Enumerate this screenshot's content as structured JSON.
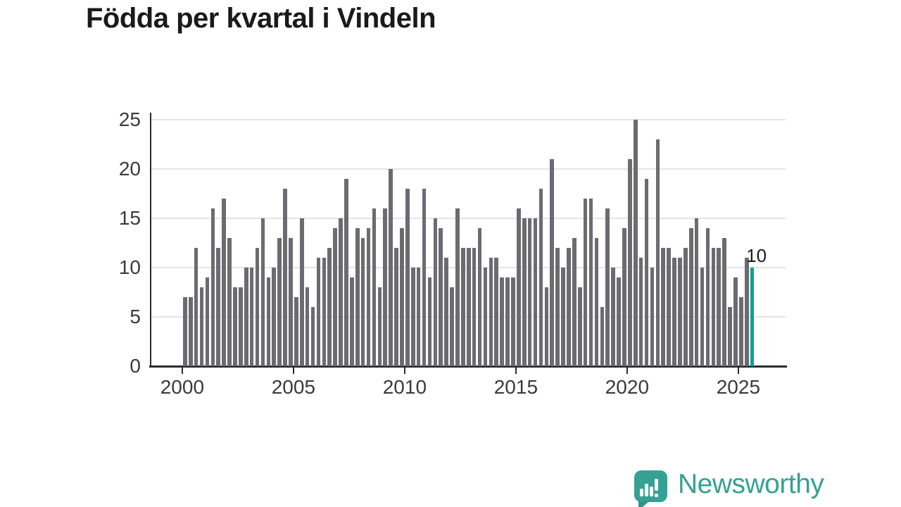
{
  "title": "Födda per kvartal i Vindeln",
  "annotation": {
    "last_bar_label": "10"
  },
  "logo": {
    "text": "Newsworthy",
    "icon": "bar-chart-speech-bubble-icon"
  },
  "colors": {
    "bar": "#6b6b70",
    "highlight": "#00a49c",
    "grid": "#e4e4e4",
    "axis": "#2b2b2b",
    "title": "#1a1a1a",
    "tick_label": "#3a3a3a",
    "logo_teal": "#35a194"
  },
  "chart_data": {
    "type": "bar",
    "title": "Födda per kvartal i Vindeln",
    "xlabel": "",
    "ylabel": "",
    "ylim": [
      0,
      25
    ],
    "grid": "horizontal",
    "y_ticks": [
      0,
      5,
      10,
      15,
      20,
      25
    ],
    "x_tick_years": [
      "2000",
      "2005",
      "2010",
      "2015",
      "2020",
      "2025"
    ],
    "highlight_last_bar": true,
    "last_bar_value_label": "10",
    "categories": [
      "2000-Q1",
      "2000-Q2",
      "2000-Q3",
      "2000-Q4",
      "2001-Q1",
      "2001-Q2",
      "2001-Q3",
      "2001-Q4",
      "2002-Q1",
      "2002-Q2",
      "2002-Q3",
      "2002-Q4",
      "2003-Q1",
      "2003-Q2",
      "2003-Q3",
      "2003-Q4",
      "2004-Q1",
      "2004-Q2",
      "2004-Q3",
      "2004-Q4",
      "2005-Q1",
      "2005-Q2",
      "2005-Q3",
      "2005-Q4",
      "2006-Q1",
      "2006-Q2",
      "2006-Q3",
      "2006-Q4",
      "2007-Q1",
      "2007-Q2",
      "2007-Q3",
      "2007-Q4",
      "2008-Q1",
      "2008-Q2",
      "2008-Q3",
      "2008-Q4",
      "2009-Q1",
      "2009-Q2",
      "2009-Q3",
      "2009-Q4",
      "2010-Q1",
      "2010-Q2",
      "2010-Q3",
      "2010-Q4",
      "2011-Q1",
      "2011-Q2",
      "2011-Q3",
      "2011-Q4",
      "2012-Q1",
      "2012-Q2",
      "2012-Q3",
      "2012-Q4",
      "2013-Q1",
      "2013-Q2",
      "2013-Q3",
      "2013-Q4",
      "2014-Q1",
      "2014-Q2",
      "2014-Q3",
      "2014-Q4",
      "2015-Q1",
      "2015-Q2",
      "2015-Q3",
      "2015-Q4",
      "2016-Q1",
      "2016-Q2",
      "2016-Q3",
      "2016-Q4",
      "2017-Q1",
      "2017-Q2",
      "2017-Q3",
      "2017-Q4",
      "2018-Q1",
      "2018-Q2",
      "2018-Q3",
      "2018-Q4",
      "2019-Q1",
      "2019-Q2",
      "2019-Q3",
      "2019-Q4",
      "2020-Q1",
      "2020-Q2",
      "2020-Q3",
      "2020-Q4",
      "2021-Q1",
      "2021-Q2",
      "2021-Q3",
      "2021-Q4",
      "2022-Q1",
      "2022-Q2",
      "2022-Q3",
      "2022-Q4",
      "2023-Q1",
      "2023-Q2",
      "2023-Q3",
      "2023-Q4",
      "2024-Q1",
      "2024-Q2",
      "2024-Q3",
      "2024-Q4",
      "2025-Q1",
      "2025-Q2",
      "2025-Q3"
    ],
    "values": [
      7,
      7,
      12,
      8,
      9,
      16,
      12,
      17,
      13,
      8,
      8,
      10,
      10,
      12,
      15,
      9,
      10,
      13,
      18,
      13,
      7,
      15,
      8,
      6,
      11,
      11,
      12,
      14,
      15,
      19,
      9,
      14,
      13,
      14,
      16,
      8,
      16,
      20,
      12,
      14,
      18,
      10,
      10,
      18,
      9,
      15,
      14,
      11,
      8,
      16,
      12,
      12,
      12,
      14,
      10,
      11,
      11,
      9,
      9,
      9,
      16,
      15,
      15,
      15,
      18,
      8,
      21,
      12,
      10,
      12,
      13,
      8,
      17,
      17,
      13,
      6,
      16,
      10,
      9,
      14,
      21,
      25,
      11,
      19,
      10,
      23,
      12,
      12,
      11,
      11,
      12,
      14,
      15,
      10,
      14,
      12,
      12,
      13,
      6,
      9,
      7,
      11,
      10
    ]
  }
}
